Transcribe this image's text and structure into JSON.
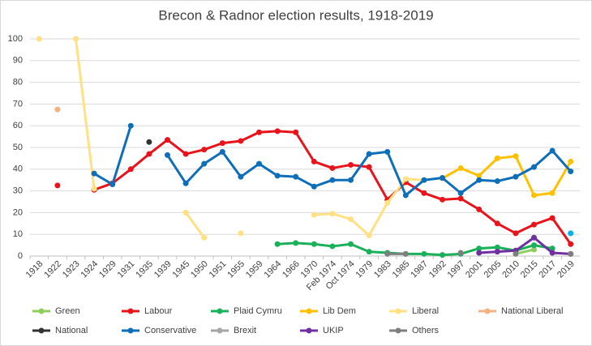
{
  "chart_data": {
    "type": "line",
    "title": "Brecon & Radnor election results, 1918-2019",
    "categories": [
      "1918",
      "1922",
      "1923",
      "1924",
      "1929",
      "1931",
      "1935",
      "1939",
      "1945",
      "1950",
      "1951",
      "1955",
      "1959",
      "1964",
      "1966",
      "1970",
      "Feb 1974",
      "Oct 1974",
      "1979",
      "1983",
      "1985",
      "1987",
      "1992",
      "1997",
      "2001",
      "2005",
      "2010",
      "2015",
      "2017",
      "2019"
    ],
    "ylim": [
      0,
      100
    ],
    "yticks": [
      0,
      10,
      20,
      30,
      40,
      50,
      60,
      70,
      80,
      90,
      100
    ],
    "grid": true,
    "series": [
      {
        "name": "Green",
        "color": "#8fce5c",
        "values": [
          null,
          null,
          null,
          null,
          null,
          null,
          null,
          null,
          null,
          null,
          null,
          null,
          null,
          null,
          null,
          null,
          null,
          null,
          null,
          null,
          null,
          null,
          null,
          null,
          null,
          null,
          1,
          3,
          null,
          null
        ]
      },
      {
        "name": "Labour",
        "color": "#e8131b",
        "values": [
          null,
          32.5,
          null,
          30.5,
          33.5,
          40,
          47,
          53.5,
          47,
          49,
          52,
          53,
          57,
          57.5,
          57,
          43.5,
          40.5,
          42,
          41,
          26,
          34,
          29,
          26,
          26.5,
          21.5,
          15,
          10.5,
          14.5,
          17.5,
          5.5
        ]
      },
      {
        "name": "Plaid Cymru",
        "color": "#1bb15a",
        "values": [
          null,
          null,
          null,
          null,
          null,
          null,
          null,
          null,
          null,
          null,
          null,
          null,
          null,
          5.5,
          6,
          5.5,
          4.5,
          5.5,
          2,
          1.5,
          1,
          1,
          0.5,
          1,
          3.5,
          4,
          2.5,
          5,
          3.5,
          null
        ]
      },
      {
        "name": "Lib Dem",
        "color": "#ffc000",
        "values": [
          null,
          null,
          null,
          null,
          null,
          null,
          null,
          null,
          null,
          null,
          null,
          null,
          null,
          null,
          null,
          null,
          null,
          null,
          null,
          null,
          null,
          null,
          35.8,
          40.5,
          37,
          45,
          46,
          28,
          29,
          43.5
        ]
      },
      {
        "name": "Liberal",
        "color": "#ffe082",
        "values": [
          100,
          null,
          100,
          31,
          null,
          null,
          null,
          null,
          20,
          8.5,
          null,
          10.5,
          null,
          null,
          null,
          19,
          19.5,
          17,
          9.5,
          24.5,
          35.5,
          35,
          null,
          null,
          null,
          null,
          null,
          null,
          null,
          null
        ]
      },
      {
        "name": "National Liberal",
        "color": "#f4b183",
        "values": [
          null,
          67.5,
          null,
          null,
          null,
          null,
          null,
          null,
          null,
          null,
          null,
          null,
          null,
          null,
          null,
          null,
          null,
          null,
          null,
          null,
          null,
          null,
          null,
          null,
          null,
          null,
          null,
          null,
          null,
          null
        ]
      },
      {
        "name": "National",
        "color": "#333333",
        "values": [
          null,
          null,
          null,
          null,
          null,
          null,
          52.5,
          null,
          null,
          null,
          null,
          null,
          null,
          null,
          null,
          null,
          null,
          null,
          null,
          null,
          null,
          null,
          null,
          null,
          null,
          null,
          null,
          null,
          null,
          null
        ]
      },
      {
        "name": "Conservative",
        "color": "#0e6eb8",
        "values": [
          null,
          null,
          null,
          38,
          33,
          60,
          null,
          46.5,
          33.5,
          42.5,
          48,
          36.5,
          42.5,
          37,
          36.5,
          32,
          35,
          35,
          47,
          48,
          28,
          35,
          36,
          29,
          35,
          34.5,
          36.5,
          41,
          48.5,
          39
        ]
      },
      {
        "name": "Brexit",
        "color": "#a6a6a6",
        "values": [
          null,
          null,
          null,
          null,
          null,
          null,
          null,
          null,
          null,
          null,
          null,
          null,
          null,
          null,
          null,
          null,
          null,
          null,
          null,
          null,
          null,
          null,
          null,
          null,
          null,
          null,
          null,
          null,
          null,
          1
        ]
      },
      {
        "name": "UKIP",
        "color": "#7030a0",
        "values": [
          null,
          null,
          null,
          null,
          null,
          null,
          null,
          null,
          null,
          null,
          null,
          null,
          null,
          null,
          null,
          null,
          null,
          null,
          null,
          null,
          null,
          null,
          null,
          null,
          1.5,
          2,
          2.5,
          8.5,
          1.5,
          1
        ]
      },
      {
        "name": "Others",
        "color": "#7f7f7f",
        "values": [
          null,
          null,
          null,
          null,
          null,
          null,
          null,
          null,
          null,
          null,
          null,
          null,
          null,
          null,
          null,
          null,
          null,
          null,
          null,
          1,
          1,
          null,
          null,
          1.5,
          null,
          null,
          1,
          null,
          null,
          1
        ]
      },
      {
        "color": "#00b0f0",
        "values": [
          null,
          null,
          null,
          null,
          null,
          null,
          null,
          null,
          null,
          null,
          null,
          null,
          null,
          null,
          null,
          null,
          null,
          null,
          null,
          null,
          null,
          null,
          null,
          null,
          null,
          null,
          null,
          null,
          null,
          10.5
        ]
      }
    ]
  }
}
